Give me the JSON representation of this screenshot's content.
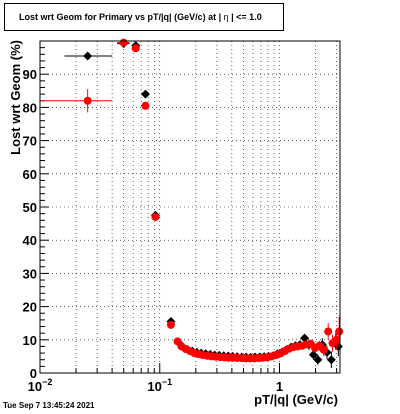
{
  "title_parts": [
    "Lost wrt Geom for Primary vs pT/|q| (GeV/c) at |",
    "η",
    "| <= 1.0"
  ],
  "timestamp": "Tue Sep  7 13:45:24 2021",
  "colors": {
    "series_black": "#000000",
    "series_red": "#ff0000",
    "grid": "#000000"
  },
  "chart_data": {
    "type": "scatter",
    "title": "Lost wrt Geom for Primary vs pT/|q| (GeV/c) at | η | <= 1.0",
    "xlabel": "pT/|q| (GeV/c)",
    "ylabel": "Lost wrt Geom (%)",
    "xscale": "log",
    "xlim": [
      0.01,
      3.2
    ],
    "ylim": [
      0,
      100
    ],
    "x_tick_labels": [
      "10−2",
      "10−1",
      "1"
    ],
    "y_tick_labels": [
      "0",
      "10",
      "20",
      "30",
      "40",
      "50",
      "60",
      "70",
      "80",
      "90"
    ],
    "grid": true,
    "legend": "none",
    "series": [
      {
        "marker": "diamond",
        "color": "#000000",
        "points": [
          {
            "x": 0.025,
            "y": 95.5,
            "xlo": 0.016,
            "xhi": 0.04,
            "err": 0
          },
          {
            "x": 0.05,
            "y": 99.2,
            "xlo": 0.044,
            "xhi": 0.056,
            "err": 0
          },
          {
            "x": 0.063,
            "y": 98.6,
            "xlo": 0.058,
            "xhi": 0.068,
            "err": 0
          },
          {
            "x": 0.076,
            "y": 84.0,
            "xlo": 0.073,
            "xhi": 0.079,
            "err": 0.8
          },
          {
            "x": 0.092,
            "y": 47.5,
            "xlo": 0.086,
            "xhi": 0.099,
            "err": 0.8
          },
          {
            "x": 0.124,
            "y": 15.5,
            "xlo": 0.119,
            "xhi": 0.129,
            "err": 0
          },
          {
            "x": 0.145,
            "y": 9.0
          },
          {
            "x": 0.158,
            "y": 7.6
          },
          {
            "x": 0.172,
            "y": 7.0
          },
          {
            "x": 0.187,
            "y": 6.6
          },
          {
            "x": 0.204,
            "y": 6.2
          },
          {
            "x": 0.222,
            "y": 6.0
          },
          {
            "x": 0.242,
            "y": 5.8
          },
          {
            "x": 0.264,
            "y": 5.6
          },
          {
            "x": 0.288,
            "y": 5.4
          },
          {
            "x": 0.314,
            "y": 5.3
          },
          {
            "x": 0.342,
            "y": 5.2
          },
          {
            "x": 0.373,
            "y": 5.1
          },
          {
            "x": 0.406,
            "y": 5.0
          },
          {
            "x": 0.443,
            "y": 4.9
          },
          {
            "x": 0.483,
            "y": 4.8
          },
          {
            "x": 0.526,
            "y": 4.8
          },
          {
            "x": 0.574,
            "y": 4.7
          },
          {
            "x": 0.625,
            "y": 4.8
          },
          {
            "x": 0.682,
            "y": 4.8
          },
          {
            "x": 0.743,
            "y": 4.9
          },
          {
            "x": 0.81,
            "y": 5.0
          },
          {
            "x": 0.883,
            "y": 5.2
          },
          {
            "x": 0.963,
            "y": 5.8
          },
          {
            "x": 1.05,
            "y": 6.3
          },
          {
            "x": 1.14,
            "y": 7.0
          },
          {
            "x": 1.25,
            "y": 7.8
          },
          {
            "x": 1.36,
            "y": 8.2
          },
          {
            "x": 1.48,
            "y": 8.5
          },
          {
            "x": 1.62,
            "y": 10.5,
            "err": 1.2
          },
          {
            "x": 1.76,
            "y": 8.5,
            "err": 1.5
          },
          {
            "x": 1.92,
            "y": 5.5,
            "err": 1.5
          },
          {
            "x": 2.09,
            "y": 4.0,
            "err": 1.5
          },
          {
            "x": 2.28,
            "y": 8.5,
            "err": 2.0
          },
          {
            "x": 2.49,
            "y": 6.2,
            "err": 2.0
          },
          {
            "x": 2.71,
            "y": 4.0,
            "err": 2.5
          },
          {
            "x": 2.95,
            "y": 9.5,
            "err": 2.5
          },
          {
            "x": 3.1,
            "y": 8.0,
            "err": 3.0
          }
        ]
      },
      {
        "marker": "circle",
        "color": "#ff0000",
        "points": [
          {
            "x": 0.025,
            "y": 82.0,
            "xlo": 0.01,
            "xhi": 0.04,
            "err": 3.5
          },
          {
            "x": 0.05,
            "y": 99.5,
            "xlo": 0.044,
            "xhi": 0.056,
            "err": 0.6
          },
          {
            "x": 0.063,
            "y": 97.8,
            "xlo": 0.058,
            "xhi": 0.068,
            "err": 0.8
          },
          {
            "x": 0.076,
            "y": 80.5,
            "xlo": 0.073,
            "xhi": 0.079,
            "err": 1.0
          },
          {
            "x": 0.092,
            "y": 47.0,
            "xlo": 0.086,
            "xhi": 0.099,
            "err": 1.0
          },
          {
            "x": 0.124,
            "y": 14.5,
            "xlo": 0.119,
            "xhi": 0.129,
            "err": 0.5
          },
          {
            "x": 0.141,
            "y": 9.5
          },
          {
            "x": 0.152,
            "y": 8.0
          },
          {
            "x": 0.165,
            "y": 7.2
          },
          {
            "x": 0.179,
            "y": 6.6
          },
          {
            "x": 0.194,
            "y": 6.0
          },
          {
            "x": 0.211,
            "y": 5.7
          },
          {
            "x": 0.229,
            "y": 5.4
          },
          {
            "x": 0.249,
            "y": 5.2
          },
          {
            "x": 0.27,
            "y": 5.0
          },
          {
            "x": 0.293,
            "y": 4.9
          },
          {
            "x": 0.319,
            "y": 4.8
          },
          {
            "x": 0.346,
            "y": 4.7
          },
          {
            "x": 0.376,
            "y": 4.6
          },
          {
            "x": 0.409,
            "y": 4.6
          },
          {
            "x": 0.444,
            "y": 4.5
          },
          {
            "x": 0.482,
            "y": 4.5
          },
          {
            "x": 0.524,
            "y": 4.4
          },
          {
            "x": 0.569,
            "y": 4.4
          },
          {
            "x": 0.619,
            "y": 4.4
          },
          {
            "x": 0.672,
            "y": 4.5
          },
          {
            "x": 0.73,
            "y": 4.6
          },
          {
            "x": 0.793,
            "y": 4.7
          },
          {
            "x": 0.862,
            "y": 5.0
          },
          {
            "x": 0.937,
            "y": 5.4
          },
          {
            "x": 1.02,
            "y": 5.9
          },
          {
            "x": 1.11,
            "y": 6.6
          },
          {
            "x": 1.2,
            "y": 7.3
          },
          {
            "x": 1.31,
            "y": 7.8
          },
          {
            "x": 1.42,
            "y": 8.0
          },
          {
            "x": 1.54,
            "y": 8.2
          },
          {
            "x": 1.68,
            "y": 8.6,
            "err": 1.0
          },
          {
            "x": 1.82,
            "y": 8.8,
            "err": 1.2
          },
          {
            "x": 1.98,
            "y": 7.5,
            "err": 1.5
          },
          {
            "x": 2.15,
            "y": 8.2,
            "err": 1.5
          },
          {
            "x": 2.34,
            "y": 7.0,
            "err": 2.0
          },
          {
            "x": 2.55,
            "y": 12.5,
            "err": 2.5
          },
          {
            "x": 2.77,
            "y": 9.0,
            "err": 2.5
          },
          {
            "x": 3.0,
            "y": 10.0,
            "err": 3.0
          },
          {
            "x": 3.15,
            "y": 12.5,
            "err": 4.5
          }
        ]
      }
    ]
  }
}
